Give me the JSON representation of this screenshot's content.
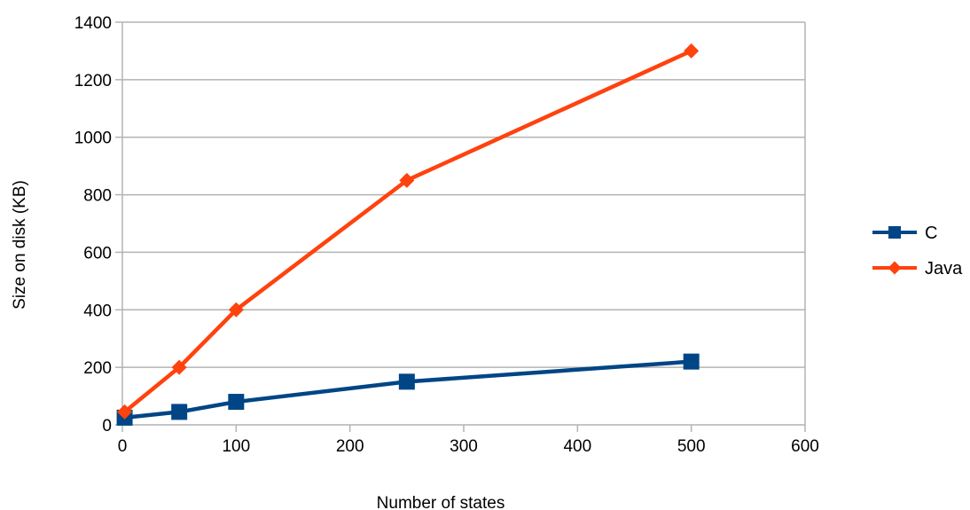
{
  "chart_data": {
    "type": "line",
    "title": "",
    "xlabel": "Number of states",
    "ylabel": "Size on disk (KB)",
    "xlim": [
      0,
      600
    ],
    "ylim": [
      0,
      1400
    ],
    "xticks": [
      0,
      100,
      200,
      300,
      400,
      500,
      600
    ],
    "yticks": [
      0,
      200,
      400,
      600,
      800,
      1000,
      1200,
      1400
    ],
    "grid": "horizontal",
    "legend_position": "right",
    "series": [
      {
        "name": "C",
        "color": "#004586",
        "marker": "square",
        "x": [
          2,
          50,
          100,
          250,
          500
        ],
        "y": [
          25,
          45,
          80,
          150,
          220
        ]
      },
      {
        "name": "Java",
        "color": "#ff420e",
        "marker": "diamond",
        "x": [
          2,
          50,
          100,
          250,
          500
        ],
        "y": [
          45,
          200,
          400,
          850,
          1300
        ]
      }
    ]
  }
}
